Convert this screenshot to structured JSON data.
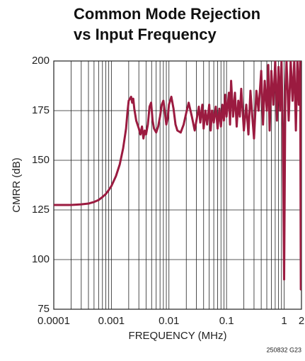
{
  "chart_data": {
    "type": "line",
    "title": "Common Mode Rejection",
    "subtitle": "vs Input Frequency",
    "x_label": "FREQUENCY (MHz)",
    "y_label": "CMRR (dB)",
    "footnote": "250832 G23",
    "x_scale": "log",
    "grid": true,
    "xlim": [
      0.0001,
      2
    ],
    "ylim": [
      75,
      200
    ],
    "xticks": [
      0.0001,
      0.001,
      0.01,
      0.1,
      1,
      2
    ],
    "yticks": [
      75,
      100,
      125,
      150,
      175,
      200
    ],
    "xminor": [
      0.0002,
      0.0003,
      0.0004,
      0.0005,
      0.0006,
      0.0007,
      0.0008,
      0.0009,
      0.002,
      0.003,
      0.004,
      0.005,
      0.006,
      0.007,
      0.008,
      0.009,
      0.02,
      0.03,
      0.04,
      0.05,
      0.06,
      0.07,
      0.08,
      0.09,
      0.2,
      0.3,
      0.4,
      0.5,
      0.6,
      0.7,
      0.8,
      0.9
    ],
    "x": [
      0.0001,
      0.0002,
      0.0003,
      0.0004,
      0.0005,
      0.0006,
      0.0007,
      0.0008,
      0.0009,
      0.001,
      0.0012,
      0.0014,
      0.0016,
      0.0018,
      0.0019,
      0.002,
      0.0021,
      0.0022,
      0.0023,
      0.0024,
      0.0025,
      0.0027,
      0.003,
      0.0032,
      0.0034,
      0.0036,
      0.0038,
      0.004,
      0.0043,
      0.0046,
      0.0049,
      0.0052,
      0.0055,
      0.006,
      0.0065,
      0.007,
      0.0075,
      0.008,
      0.0085,
      0.009,
      0.0095,
      0.01,
      0.011,
      0.012,
      0.013,
      0.014,
      0.016,
      0.018,
      0.02,
      0.022,
      0.025,
      0.028,
      0.03,
      0.033,
      0.035,
      0.038,
      0.04,
      0.043,
      0.046,
      0.05,
      0.053,
      0.056,
      0.06,
      0.065,
      0.07,
      0.075,
      0.08,
      0.085,
      0.09,
      0.095,
      0.1,
      0.11,
      0.115,
      0.12,
      0.13,
      0.14,
      0.15,
      0.16,
      0.17,
      0.18,
      0.2,
      0.22,
      0.24,
      0.26,
      0.28,
      0.3,
      0.33,
      0.36,
      0.4,
      0.43,
      0.46,
      0.5,
      0.53,
      0.56,
      0.6,
      0.65,
      0.7,
      0.75,
      0.8,
      0.85,
      0.9,
      0.95,
      1.0,
      1.05,
      1.1,
      1.2,
      1.3,
      1.4,
      1.5,
      1.6,
      1.7,
      1.8,
      1.9,
      1.95,
      2.0
    ],
    "series": [
      {
        "color": "#9b1b40",
        "values": [
          127.5,
          127.5,
          127.8,
          128.2,
          129,
          130,
          131.5,
          133,
          135,
          137,
          142,
          148,
          156,
          166,
          174,
          180,
          181,
          182,
          179,
          181,
          176,
          170,
          166,
          163,
          167,
          161,
          165,
          163,
          168,
          177,
          179,
          170,
          166,
          164,
          167,
          172,
          178,
          180,
          174,
          168,
          171,
          178,
          182,
          176,
          168,
          165,
          164,
          168,
          174,
          179,
          172,
          165,
          170,
          177,
          169,
          178,
          166,
          175,
          168,
          178,
          165,
          175,
          169,
          177,
          166,
          176,
          167,
          178,
          170,
          183,
          172,
          184,
          168,
          190,
          172,
          184,
          167,
          180,
          172,
          186,
          165,
          178,
          163,
          185,
          172,
          161,
          185,
          175,
          195,
          168,
          190,
          175,
          198,
          165,
          195,
          178,
          200,
          170,
          197,
          175,
          200,
          165,
          90,
          185,
          200,
          170,
          200,
          180,
          200,
          165,
          200,
          178,
          200,
          85,
          88
        ]
      }
    ]
  }
}
